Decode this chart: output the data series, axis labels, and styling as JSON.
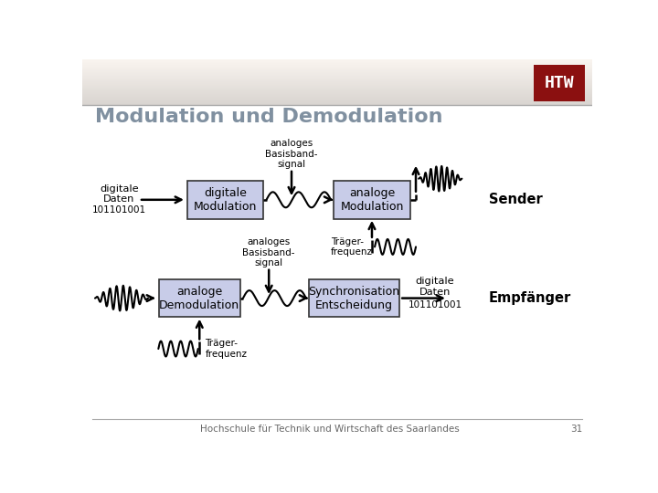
{
  "title": "Modulation und Demodulation",
  "title_fontsize": 16,
  "title_color": "#8090A0",
  "bg_color": "#FFFFFF",
  "box_facecolor": "#C8CCE8",
  "box_edgecolor": "#333333",
  "footer_text": "Hochschule für Technik und Wirtschaft des Saarlandes",
  "footer_num": "31",
  "sender_label": "Sender",
  "empfaenger_label": "Empfänger",
  "top_row": {
    "box1_label": "digitale\nModulation",
    "box2_label": "analoge\nModulation",
    "left_label_line1": "digitale\nDaten",
    "left_label_line2": "101101001",
    "top_label": "analoges\nBasisband-\nsignal",
    "bottom_label": "Träger-\nfrequenz"
  },
  "bottom_row": {
    "box1_label": "analoge\nDemodulation",
    "box2_label": "Synchronisation\nEntscheidung",
    "right_label_line1": "digitale\nDaten",
    "right_label_line2": "101101001",
    "top_label": "analoges\nBasisband-\nsignal",
    "bottom_label": "Träger-\nfrequenz"
  }
}
